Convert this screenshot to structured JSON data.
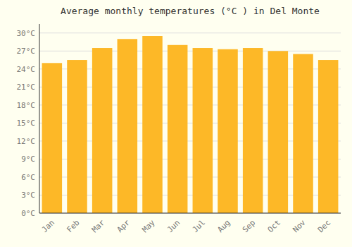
{
  "chart_data": {
    "type": "bar",
    "title": "Average monthly temperatures (°C ) in Del Monte",
    "categories": [
      "Jan",
      "Feb",
      "Mar",
      "Apr",
      "May",
      "Jun",
      "Jul",
      "Aug",
      "Sep",
      "Oct",
      "Nov",
      "Dec"
    ],
    "values": [
      25.0,
      25.5,
      27.5,
      29.0,
      29.5,
      28.0,
      27.5,
      27.3,
      27.5,
      27.0,
      26.5,
      25.5
    ],
    "color": "#FDB827",
    "ylim": [
      0,
      31.5
    ],
    "yticks": [
      {
        "value": 0,
        "label": "0°C"
      },
      {
        "value": 3,
        "label": "3°C"
      },
      {
        "value": 6,
        "label": "6°C"
      },
      {
        "value": 9,
        "label": "9°C"
      },
      {
        "value": 12,
        "label": "12°C"
      },
      {
        "value": 15,
        "label": "15°C"
      },
      {
        "value": 18,
        "label": "18°C"
      },
      {
        "value": 21,
        "label": "21°C"
      },
      {
        "value": 24,
        "label": "24°C"
      },
      {
        "value": 27,
        "label": "27°C"
      },
      {
        "value": 30,
        "label": "30°C"
      }
    ],
    "grid": true
  }
}
